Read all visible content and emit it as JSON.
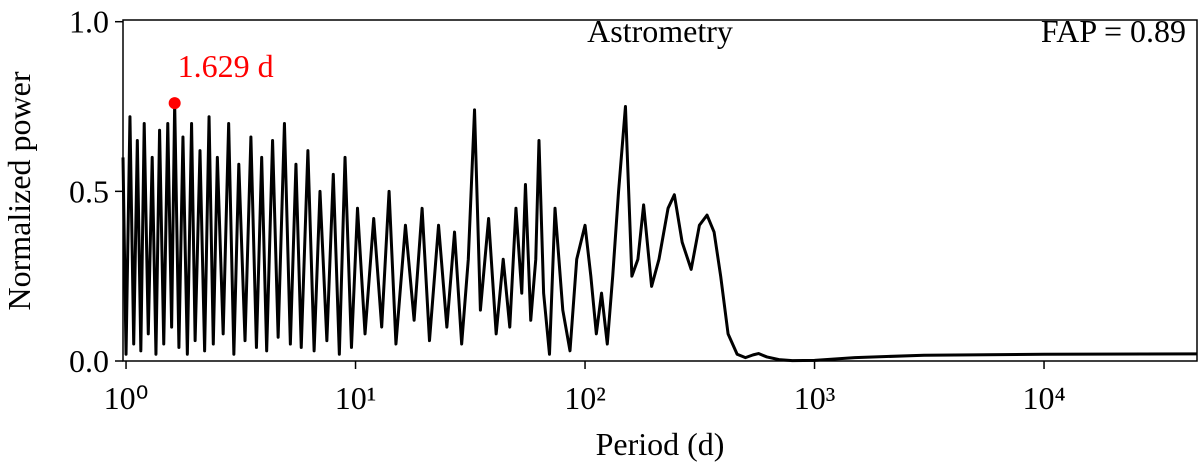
{
  "chart_data": {
    "type": "line",
    "title": "Astrometry",
    "annotation": "FAP = 0.89",
    "xlabel": "Period (d)",
    "ylabel": "Normalized power",
    "log_x": true,
    "color": "#000000",
    "xlim": [
      0.97,
      46400
    ],
    "ylim": [
      0,
      1.005
    ],
    "xticks": [
      {
        "value": 1,
        "label": "10⁰"
      },
      {
        "value": 10,
        "label": "10¹"
      },
      {
        "value": 100,
        "label": "10²"
      },
      {
        "value": 1000,
        "label": "10³"
      },
      {
        "value": 10000,
        "label": "10⁴"
      }
    ],
    "yticks": [
      {
        "value": 0,
        "label": "0.0"
      },
      {
        "value": 0.5,
        "label": "0.5"
      },
      {
        "value": 1,
        "label": "1.0"
      }
    ],
    "x": [
      0.97,
      1.0,
      1.04,
      1.08,
      1.12,
      1.16,
      1.2,
      1.25,
      1.3,
      1.35,
      1.4,
      1.46,
      1.52,
      1.58,
      1.629,
      1.7,
      1.77,
      1.85,
      1.93,
      2.0,
      2.1,
      2.2,
      2.3,
      2.4,
      2.5,
      2.65,
      2.8,
      2.95,
      3.1,
      3.3,
      3.5,
      3.7,
      3.9,
      4.1,
      4.35,
      4.6,
      4.9,
      5.2,
      5.5,
      5.8,
      6.2,
      6.6,
      7.0,
      7.5,
      8.0,
      8.5,
      9.0,
      9.6,
      10.2,
      11,
      12,
      13,
      14,
      15,
      16.5,
      18,
      19.5,
      21,
      23,
      25,
      27,
      29,
      31,
      33,
      35,
      38,
      41,
      44,
      47,
      50,
      53,
      55,
      58,
      61,
      63,
      66,
      70,
      74,
      80,
      86,
      92,
      100,
      106,
      112,
      118,
      125,
      132,
      140,
      150,
      160,
      170,
      180,
      195,
      210,
      230,
      245,
      265,
      290,
      315,
      340,
      365,
      390,
      420,
      460,
      500,
      540,
      570,
      620,
      700,
      800,
      1000,
      1500,
      3000,
      10000,
      46400
    ],
    "values": [
      0.6,
      0.02,
      0.72,
      0.05,
      0.65,
      0.03,
      0.7,
      0.08,
      0.6,
      0.02,
      0.68,
      0.05,
      0.7,
      0.1,
      0.76,
      0.04,
      0.66,
      0.02,
      0.7,
      0.06,
      0.62,
      0.03,
      0.72,
      0.05,
      0.6,
      0.08,
      0.7,
      0.02,
      0.58,
      0.06,
      0.66,
      0.04,
      0.6,
      0.03,
      0.65,
      0.07,
      0.7,
      0.05,
      0.58,
      0.04,
      0.62,
      0.03,
      0.5,
      0.06,
      0.55,
      0.02,
      0.6,
      0.04,
      0.45,
      0.08,
      0.42,
      0.1,
      0.5,
      0.05,
      0.4,
      0.12,
      0.45,
      0.06,
      0.4,
      0.1,
      0.38,
      0.05,
      0.3,
      0.74,
      0.15,
      0.42,
      0.08,
      0.3,
      0.1,
      0.45,
      0.2,
      0.52,
      0.12,
      0.3,
      0.65,
      0.2,
      0.02,
      0.45,
      0.15,
      0.03,
      0.3,
      0.4,
      0.25,
      0.08,
      0.2,
      0.05,
      0.25,
      0.5,
      0.75,
      0.25,
      0.3,
      0.46,
      0.22,
      0.3,
      0.45,
      0.49,
      0.35,
      0.27,
      0.4,
      0.43,
      0.38,
      0.25,
      0.08,
      0.02,
      0.01,
      0.018,
      0.022,
      0.012,
      0.004,
      0.001,
      0.002,
      0.01,
      0.017,
      0.02,
      0.021
    ],
    "peak": {
      "x": 1.629,
      "y": 0.76,
      "label": "1.629 d",
      "color": "#ff0000"
    }
  }
}
